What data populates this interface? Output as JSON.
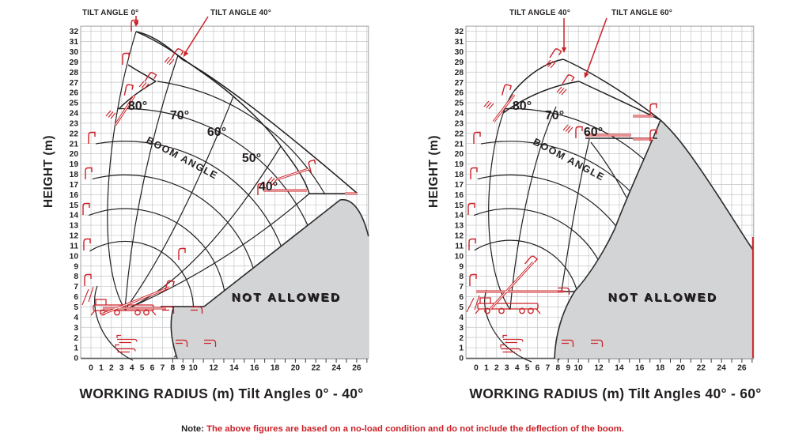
{
  "colors": {
    "red": "#cc2127",
    "dark_line": "#231f20",
    "grid": "#c3c5c7",
    "grid_border": "#9fa2a4",
    "not_allowed_fill": "#d3d4d6",
    "not_allowed_text": "#ffffff"
  },
  "note": {
    "label": "Note:",
    "text": " The above figures are based on a no-load condition and do not include the deflection of the boom."
  },
  "chart_data": [
    {
      "type": "line",
      "panel": "left",
      "title": "WORKING RADIUS (m)  Tilt Angles 0° - 40°",
      "xlabel": "WORKING RADIUS (m)",
      "ylabel": "HEIGHT (m)",
      "xlim": [
        -1,
        27.1
      ],
      "ylim": [
        0,
        32.5
      ],
      "grid": true,
      "x_ticks": [
        0,
        1,
        2,
        3,
        4,
        5,
        6,
        7,
        8,
        9,
        10,
        12,
        14,
        16,
        18,
        20,
        22,
        24,
        26
      ],
      "y_max": 32,
      "y_tick_step": 1,
      "boom_angle_labels": [
        "80°",
        "70°",
        "60°",
        "50°",
        "40°"
      ],
      "boom_angle_curve_label": "BOOM ANGLE",
      "tilt_callouts": [
        "TILT ANGLE 0°",
        "TILT ANGLE 40°"
      ],
      "boom_pivot_m": [
        3.3,
        4.7
      ],
      "stage_arc_radii_m": [
        4.0,
        6.7,
        9.9,
        13.2,
        16.5,
        19.7,
        22.6
      ],
      "envelope_tilt_0_tips_m": [
        [
          4.4,
          32.0
        ],
        [
          8.5,
          29.7
        ],
        [
          13.9,
          25.6
        ],
        [
          18.5,
          20.8
        ],
        [
          21.3,
          16.1
        ]
      ],
      "envelope_tilt_40_m": [
        [
          8.9,
          29.3
        ],
        [
          17.0,
          21.5
        ],
        [
          26.0,
          16.1
        ]
      ],
      "not_allowed_label": "NOT ALLOWED",
      "not_allowed_boundary_m": [
        [
          8.4,
          0
        ],
        [
          8.1,
          5.0
        ],
        [
          11.1,
          5.0
        ],
        [
          24.4,
          15.5
        ],
        [
          26.4,
          13.0
        ],
        [
          27.1,
          12.0
        ],
        [
          27.1,
          0
        ]
      ]
    },
    {
      "type": "line",
      "panel": "right",
      "title": "WORKING RADIUS (m)  Tilt Angles 40° - 60°",
      "xlabel": "WORKING RADIUS (m)",
      "ylabel": "HEIGHT (m)",
      "xlim": [
        -1,
        27.1
      ],
      "ylim": [
        0,
        32.5
      ],
      "grid": true,
      "x_ticks": [
        0,
        1,
        2,
        3,
        4,
        5,
        6,
        7,
        8,
        9,
        10,
        12,
        14,
        16,
        18,
        20,
        22,
        24,
        26
      ],
      "y_max": 32,
      "y_tick_step": 1,
      "boom_angle_labels": [
        "80°",
        "70°",
        "60°"
      ],
      "boom_angle_curve_label": "BOOM ANGLE",
      "tilt_callouts": [
        "TILT ANGLE 40°",
        "TILT ANGLE 60°"
      ],
      "boom_pivot_m": [
        3.3,
        4.7
      ],
      "stage_arc_radii_m": [
        4.0,
        6.8,
        9.9,
        13.2,
        16.5,
        19.7
      ],
      "envelope_tilt_40_m": [
        [
          8.5,
          29.3
        ],
        [
          14.9,
          25.0
        ],
        [
          18.0,
          23.3
        ]
      ],
      "envelope_tilt_60_m": [
        [
          10.1,
          27.1
        ],
        [
          13.2,
          25.3
        ],
        [
          18.0,
          23.3
        ]
      ],
      "sixty_deg_reach_m": [
        [
          10.7,
          21.5
        ],
        [
          17.8,
          21.5
        ]
      ],
      "not_allowed_label": "NOT ALLOWED",
      "not_allowed_boundary_m": [
        [
          7.7,
          0
        ],
        [
          6.3,
          4.8
        ],
        [
          9.7,
          11.0
        ],
        [
          13.5,
          18.4
        ],
        [
          18.0,
          23.3
        ],
        [
          20.6,
          19.5
        ],
        [
          27.0,
          10.6
        ],
        [
          27.0,
          0
        ]
      ]
    }
  ]
}
